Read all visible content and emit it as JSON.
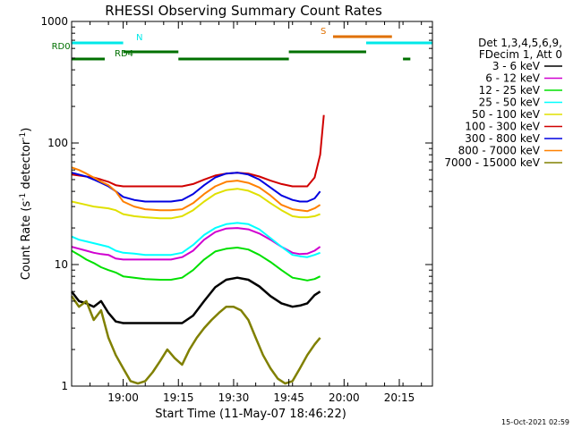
{
  "chart_data": {
    "type": "line",
    "title": "RHESSI Observing Summary Count Rates",
    "xlabel": "Start Time (11-May-07 18:46:22)",
    "ylabel_parts": {
      "prefix": "Count Rate (s",
      "sup1": "-1",
      "mid": " detector",
      "sup2": "-1",
      "suffix": ")"
    },
    "yscale": "log",
    "ylim": [
      1,
      1000
    ],
    "xlim_min": [
      0,
      98
    ],
    "x_ticks": [
      {
        "min": 14,
        "label": "19:00"
      },
      {
        "min": 29,
        "label": "19:15"
      },
      {
        "min": 44,
        "label": "19:30"
      },
      {
        "min": 59,
        "label": "19:45"
      },
      {
        "min": 74,
        "label": "20:00"
      },
      {
        "min": 89,
        "label": "20:15"
      }
    ],
    "y_ticks": [
      {
        "v": 1,
        "label": "1"
      },
      {
        "v": 10,
        "label": "10"
      },
      {
        "v": 100,
        "label": "100"
      },
      {
        "v": 1000,
        "label": "1000"
      }
    ],
    "legend_title": [
      "Det 1,3,4,5,6,9,",
      "FDecim 1, Att 0"
    ],
    "series": [
      {
        "name": "3 - 6 keV",
        "color": "#000000",
        "points": [
          [
            0,
            6
          ],
          [
            2,
            5
          ],
          [
            4,
            4.8
          ],
          [
            6,
            4.5
          ],
          [
            8,
            5
          ],
          [
            10,
            4
          ],
          [
            12,
            3.4
          ],
          [
            14,
            3.3
          ],
          [
            17,
            3.3
          ],
          [
            20,
            3.3
          ],
          [
            24,
            3.3
          ],
          [
            27,
            3.3
          ],
          [
            30,
            3.3
          ],
          [
            33,
            3.8
          ],
          [
            36,
            5
          ],
          [
            39,
            6.5
          ],
          [
            42,
            7.5
          ],
          [
            45,
            7.8
          ],
          [
            48,
            7.5
          ],
          [
            51,
            6.6
          ],
          [
            54,
            5.5
          ],
          [
            57,
            4.8
          ],
          [
            60,
            4.5
          ],
          [
            62,
            4.6
          ],
          [
            64,
            4.8
          ],
          [
            66,
            5.6
          ],
          [
            67.5,
            6
          ]
        ]
      },
      {
        "name": "6 - 12 keV",
        "color": "#d000d0",
        "points": [
          [
            0,
            14
          ],
          [
            2,
            13.5
          ],
          [
            4,
            13
          ],
          [
            6,
            12.5
          ],
          [
            8,
            12.2
          ],
          [
            10,
            12
          ],
          [
            12,
            11.2
          ],
          [
            14,
            11
          ],
          [
            17,
            11
          ],
          [
            20,
            11
          ],
          [
            24,
            11
          ],
          [
            27,
            11
          ],
          [
            30,
            11.5
          ],
          [
            33,
            13
          ],
          [
            36,
            16
          ],
          [
            39,
            18.5
          ],
          [
            42,
            19.8
          ],
          [
            45,
            20
          ],
          [
            48,
            19.5
          ],
          [
            51,
            18
          ],
          [
            54,
            16
          ],
          [
            57,
            14
          ],
          [
            60,
            12.5
          ],
          [
            62,
            12.2
          ],
          [
            64,
            12.3
          ],
          [
            66,
            13
          ],
          [
            67.5,
            14
          ]
        ]
      },
      {
        "name": "12 - 25 keV",
        "color": "#00e000",
        "points": [
          [
            0,
            13
          ],
          [
            2,
            12
          ],
          [
            4,
            11
          ],
          [
            6,
            10.3
          ],
          [
            8,
            9.5
          ],
          [
            10,
            9
          ],
          [
            12,
            8.6
          ],
          [
            14,
            8
          ],
          [
            17,
            7.8
          ],
          [
            20,
            7.6
          ],
          [
            24,
            7.5
          ],
          [
            27,
            7.5
          ],
          [
            30,
            7.8
          ],
          [
            33,
            9
          ],
          [
            36,
            11
          ],
          [
            39,
            12.8
          ],
          [
            42,
            13.5
          ],
          [
            45,
            13.8
          ],
          [
            48,
            13.3
          ],
          [
            51,
            12
          ],
          [
            54,
            10.5
          ],
          [
            57,
            9
          ],
          [
            60,
            7.8
          ],
          [
            62,
            7.6
          ],
          [
            64,
            7.4
          ],
          [
            66,
            7.6
          ],
          [
            67.5,
            8
          ]
        ]
      },
      {
        "name": "25 - 50 keV",
        "color": "#00ffff",
        "points": [
          [
            0,
            17
          ],
          [
            2,
            16
          ],
          [
            4,
            15.5
          ],
          [
            6,
            15
          ],
          [
            8,
            14.5
          ],
          [
            10,
            14
          ],
          [
            12,
            13
          ],
          [
            14,
            12.5
          ],
          [
            17,
            12.3
          ],
          [
            20,
            12
          ],
          [
            24,
            12
          ],
          [
            27,
            12
          ],
          [
            30,
            12.5
          ],
          [
            33,
            14.5
          ],
          [
            36,
            17.5
          ],
          [
            39,
            20
          ],
          [
            42,
            21.5
          ],
          [
            45,
            22
          ],
          [
            48,
            21.5
          ],
          [
            51,
            19.5
          ],
          [
            54,
            16.5
          ],
          [
            57,
            14
          ],
          [
            60,
            12
          ],
          [
            62,
            11.7
          ],
          [
            64,
            11.5
          ],
          [
            66,
            12
          ],
          [
            67.5,
            12.5
          ]
        ]
      },
      {
        "name": "50 - 100 keV",
        "color": "#e0e000",
        "points": [
          [
            0,
            33
          ],
          [
            2,
            32
          ],
          [
            4,
            31
          ],
          [
            6,
            30
          ],
          [
            8,
            29.5
          ],
          [
            10,
            29
          ],
          [
            12,
            28
          ],
          [
            14,
            26
          ],
          [
            17,
            25
          ],
          [
            20,
            24.5
          ],
          [
            24,
            24
          ],
          [
            27,
            24
          ],
          [
            30,
            25
          ],
          [
            33,
            28
          ],
          [
            36,
            33
          ],
          [
            39,
            38
          ],
          [
            42,
            41
          ],
          [
            45,
            42
          ],
          [
            48,
            40.5
          ],
          [
            51,
            37
          ],
          [
            54,
            32
          ],
          [
            57,
            28
          ],
          [
            60,
            25
          ],
          [
            62,
            24.5
          ],
          [
            64,
            24.5
          ],
          [
            66,
            25
          ],
          [
            67.5,
            26
          ]
        ]
      },
      {
        "name": "100 - 300 keV",
        "color": "#d00000",
        "points": [
          [
            0,
            55
          ],
          [
            2,
            54
          ],
          [
            4,
            53
          ],
          [
            6,
            52
          ],
          [
            8,
            50
          ],
          [
            10,
            48
          ],
          [
            12,
            45
          ],
          [
            14,
            44
          ],
          [
            17,
            44
          ],
          [
            20,
            44
          ],
          [
            24,
            44
          ],
          [
            27,
            44
          ],
          [
            30,
            44
          ],
          [
            33,
            46
          ],
          [
            36,
            50
          ],
          [
            39,
            54
          ],
          [
            42,
            56
          ],
          [
            45,
            57
          ],
          [
            48,
            56
          ],
          [
            51,
            53
          ],
          [
            54,
            49
          ],
          [
            57,
            46
          ],
          [
            60,
            44
          ],
          [
            62,
            44
          ],
          [
            64,
            44
          ],
          [
            66,
            52
          ],
          [
            67.5,
            80
          ],
          [
            68.5,
            170
          ]
        ]
      },
      {
        "name": "300 - 800 keV",
        "color": "#0000e0",
        "points": [
          [
            0,
            57
          ],
          [
            2,
            55
          ],
          [
            4,
            53
          ],
          [
            6,
            50
          ],
          [
            8,
            47
          ],
          [
            10,
            44
          ],
          [
            12,
            40
          ],
          [
            14,
            36
          ],
          [
            17,
            34
          ],
          [
            20,
            33
          ],
          [
            24,
            33
          ],
          [
            27,
            33
          ],
          [
            30,
            34
          ],
          [
            33,
            38
          ],
          [
            36,
            45
          ],
          [
            39,
            52
          ],
          [
            42,
            56
          ],
          [
            45,
            57
          ],
          [
            48,
            55
          ],
          [
            51,
            50
          ],
          [
            54,
            43
          ],
          [
            57,
            37
          ],
          [
            60,
            34
          ],
          [
            62,
            33
          ],
          [
            64,
            33
          ],
          [
            66,
            35
          ],
          [
            67.5,
            40
          ]
        ]
      },
      {
        "name": "800 - 7000 keV",
        "color": "#ff8000",
        "points": [
          [
            0,
            63
          ],
          [
            2,
            60
          ],
          [
            4,
            56
          ],
          [
            6,
            52
          ],
          [
            8,
            48
          ],
          [
            10,
            45
          ],
          [
            12,
            40
          ],
          [
            14,
            33
          ],
          [
            17,
            30
          ],
          [
            20,
            28.5
          ],
          [
            24,
            28
          ],
          [
            27,
            28
          ],
          [
            30,
            28.5
          ],
          [
            33,
            32
          ],
          [
            36,
            38
          ],
          [
            39,
            44
          ],
          [
            42,
            48
          ],
          [
            45,
            49
          ],
          [
            48,
            47
          ],
          [
            51,
            43
          ],
          [
            54,
            37
          ],
          [
            57,
            31
          ],
          [
            60,
            28.5
          ],
          [
            62,
            28
          ],
          [
            64,
            27.5
          ],
          [
            66,
            29
          ],
          [
            67.5,
            31
          ]
        ]
      },
      {
        "name": "7000 - 15000 keV",
        "color": "#808000",
        "points": [
          [
            0,
            5.5
          ],
          [
            2,
            4.5
          ],
          [
            4,
            5
          ],
          [
            6,
            3.5
          ],
          [
            8,
            4.2
          ],
          [
            10,
            2.5
          ],
          [
            12,
            1.8
          ],
          [
            14,
            1.4
          ],
          [
            16,
            1.1
          ],
          [
            18,
            1.05
          ],
          [
            20,
            1.1
          ],
          [
            22,
            1.3
          ],
          [
            24,
            1.6
          ],
          [
            26,
            2
          ],
          [
            28,
            1.7
          ],
          [
            30,
            1.5
          ],
          [
            32,
            2
          ],
          [
            34,
            2.5
          ],
          [
            36,
            3
          ],
          [
            38,
            3.5
          ],
          [
            40,
            4
          ],
          [
            42,
            4.5
          ],
          [
            44,
            4.5
          ],
          [
            46,
            4.2
          ],
          [
            48,
            3.5
          ],
          [
            50,
            2.5
          ],
          [
            52,
            1.8
          ],
          [
            54,
            1.4
          ],
          [
            56,
            1.15
          ],
          [
            58,
            1.05
          ],
          [
            60,
            1.1
          ],
          [
            62,
            1.4
          ],
          [
            64,
            1.8
          ],
          [
            66,
            2.2
          ],
          [
            67.5,
            2.5
          ]
        ]
      }
    ],
    "status_bars": [
      {
        "label": "N",
        "color": "#00e8e8",
        "ranges": [
          [
            0,
            14
          ]
        ]
      },
      {
        "label": "",
        "color": "#00e8e8",
        "ranges": [
          [
            80,
            98
          ]
        ]
      },
      {
        "label": "RD0",
        "color": "#007000",
        "ranges": [
          [
            14,
            29
          ],
          [
            59,
            80
          ]
        ]
      },
      {
        "label": "RD4",
        "color": "#007000",
        "ranges": [
          [
            0,
            9
          ],
          [
            29,
            59
          ],
          [
            90,
            92
          ]
        ]
      },
      {
        "label": "S",
        "color": "#e07000",
        "ranges": [
          [
            71,
            87
          ]
        ]
      }
    ],
    "timestamp": "15-Oct-2021 02:59"
  }
}
